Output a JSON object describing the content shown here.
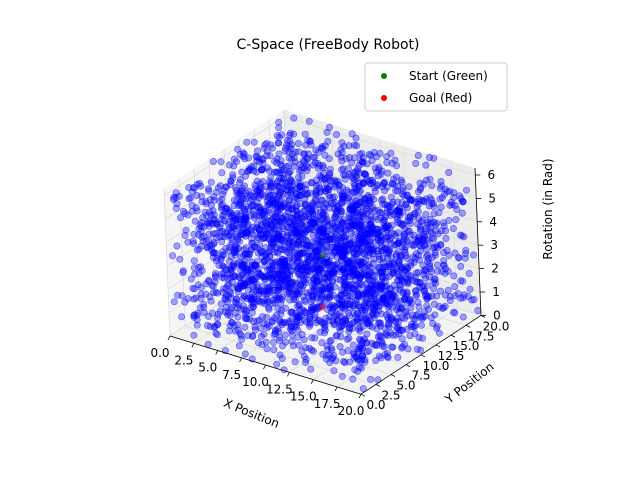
{
  "chart_data": {
    "type": "scatter",
    "title": "C-Space (FreeBody Robot)",
    "xlabel": "X Position",
    "ylabel": "Y Position",
    "zlabel": "Rotation (in Rad)",
    "xlim": [
      0,
      20
    ],
    "ylim": [
      0,
      20
    ],
    "zlim": [
      0,
      6.3
    ],
    "xticks": [
      "0.0",
      "2.5",
      "5.0",
      "7.5",
      "10.0",
      "12.5",
      "15.0",
      "17.5",
      "20.0"
    ],
    "yticks": [
      "0.0",
      "2.5",
      "5.0",
      "7.5",
      "10.0",
      "12.5",
      "15.0",
      "17.5",
      "20.0"
    ],
    "zticks": [
      "0",
      "1",
      "2",
      "3",
      "4",
      "5",
      "6"
    ],
    "grid": true,
    "legend_position": "top-right",
    "series": [
      {
        "name": "Start (Green)",
        "color": "#008000",
        "values": [
          [
            10.0,
            10.0,
            3.0
          ]
        ]
      },
      {
        "name": "Goal (Red)",
        "color": "#ff0000",
        "values": [
          [
            13.0,
            5.0,
            2.0
          ]
        ]
      },
      {
        "color": "#0000ff",
        "alpha": 0.35,
        "count": 3000,
        "distribution": "uniform",
        "x_range": [
          0,
          20
        ],
        "y_range": [
          0,
          20
        ],
        "z_range": [
          0,
          6.3
        ]
      }
    ]
  }
}
